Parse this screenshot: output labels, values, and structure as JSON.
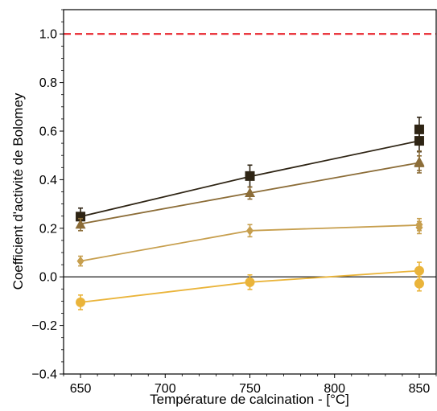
{
  "chart_data": {
    "type": "line",
    "xlabel": "Température de calcination - [°C]",
    "ylabel": "Coefficient d'activité de Bolomey",
    "xlim": [
      640,
      860
    ],
    "ylim": [
      -0.4,
      1.1
    ],
    "xticks": [
      650,
      700,
      750,
      800,
      850
    ],
    "xtick_labels": [
      "650",
      "700",
      "750",
      "800",
      "850"
    ],
    "yticks": [
      -0.4,
      -0.2,
      0.0,
      0.2,
      0.4,
      0.6,
      0.8,
      1.0
    ],
    "ytick_labels": [
      "−0.4",
      "−0.2",
      "0.0",
      "0.2",
      "0.4",
      "0.6",
      "0.8",
      "1.0"
    ],
    "grid": false,
    "legend": null,
    "reference_lines": [
      {
        "y": 1.0,
        "color": "#e8262e",
        "style": "dashed"
      },
      {
        "y": 0.0,
        "color": "#000000",
        "style": "solid"
      }
    ],
    "series": [
      {
        "color": "#2e2414",
        "marker": "square",
        "x": [
          650,
          750,
          850
        ],
        "fit": [
          0.248,
          0.413,
          0.56
        ],
        "points": [
          {
            "x": 650,
            "y": 0.248,
            "err": 0.035
          },
          {
            "x": 750,
            "y": 0.415,
            "err": 0.045
          },
          {
            "x": 850,
            "y": 0.607,
            "err": 0.05
          },
          {
            "x": 850,
            "y": 0.56,
            "err": 0.045
          }
        ]
      },
      {
        "color": "#8c6d38",
        "marker": "triangle",
        "x": [
          650,
          750,
          850
        ],
        "fit": [
          0.218,
          0.345,
          0.47
        ],
        "points": [
          {
            "x": 650,
            "y": 0.215,
            "err": 0.025
          },
          {
            "x": 750,
            "y": 0.345,
            "err": 0.025
          },
          {
            "x": 850,
            "y": 0.473,
            "err": 0.045
          },
          {
            "x": 850,
            "y": 0.468,
            "err": 0.03
          }
        ]
      },
      {
        "color": "#c79f4e",
        "marker": "diamond",
        "x": [
          650,
          750,
          850
        ],
        "fit": [
          0.065,
          0.19,
          0.213
        ],
        "points": [
          {
            "x": 650,
            "y": 0.065,
            "err": 0.02
          },
          {
            "x": 750,
            "y": 0.19,
            "err": 0.025
          },
          {
            "x": 850,
            "y": 0.215,
            "err": 0.025
          },
          {
            "x": 850,
            "y": 0.203,
            "err": 0.025
          }
        ]
      },
      {
        "color": "#eab43a",
        "marker": "circle",
        "x": [
          650,
          750,
          850
        ],
        "fit": [
          -0.105,
          -0.022,
          0.025
        ],
        "points": [
          {
            "x": 650,
            "y": -0.105,
            "err": 0.03
          },
          {
            "x": 750,
            "y": -0.022,
            "err": 0.03
          },
          {
            "x": 850,
            "y": 0.025,
            "err": 0.035
          },
          {
            "x": 850,
            "y": -0.028,
            "err": 0.03
          }
        ]
      }
    ]
  }
}
